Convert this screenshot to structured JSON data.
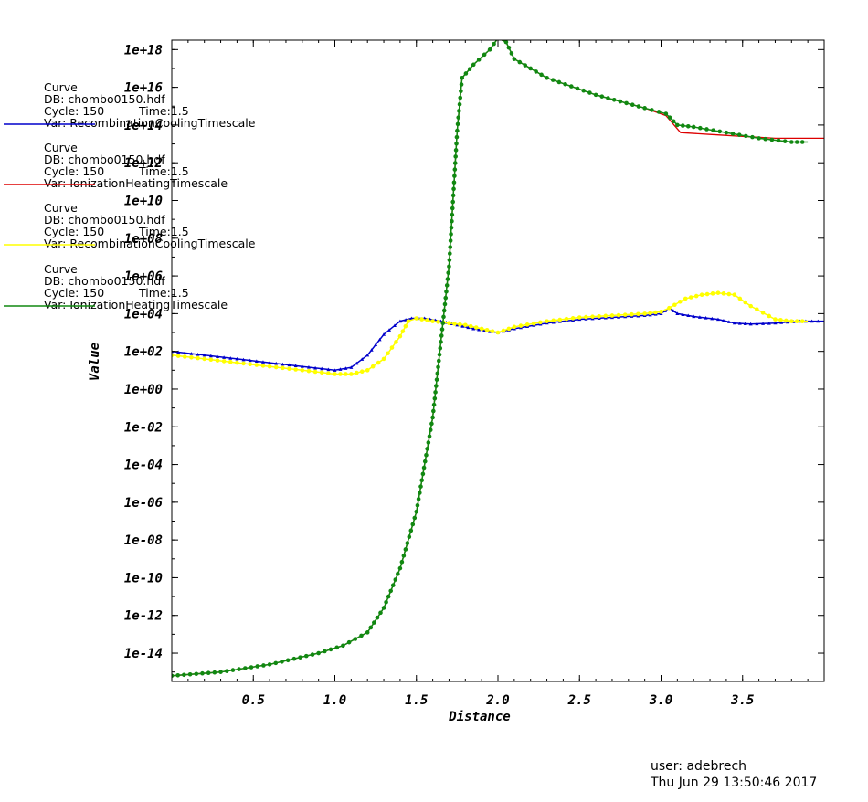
{
  "chart_data": {
    "type": "line",
    "xlabel": "Distance",
    "ylabel": "Value",
    "xlim": [
      0.0,
      4.0
    ],
    "ylog": true,
    "ylim_exp": [
      -15.5,
      18.5
    ],
    "xticks": [
      "0.5",
      "1.0",
      "1.5",
      "2.0",
      "2.5",
      "3.0",
      "3.5"
    ],
    "xtick_values": [
      0.5,
      1.0,
      1.5,
      2.0,
      2.5,
      3.0,
      3.5
    ],
    "yticks": [
      "1e+18",
      "1e+16",
      "1e+14",
      "1e+12",
      "1e+10",
      "1e+08",
      "1e+06",
      "1e+04",
      "1e+02",
      "1e+00",
      "1e-02",
      "1e-04",
      "1e-06",
      "1e-08",
      "1e-10",
      "1e-12",
      "1e-14"
    ],
    "ytick_exps": [
      18,
      16,
      14,
      12,
      10,
      8,
      6,
      4,
      2,
      0,
      -2,
      -4,
      -6,
      -8,
      -10,
      -12,
      -14
    ],
    "series": [
      {
        "name": "RecombinationCoolingTimescale",
        "color": "#0000cc",
        "marker": "triangle",
        "x": [
          0.0,
          0.2,
          0.4,
          0.6,
          0.8,
          1.0,
          1.1,
          1.2,
          1.3,
          1.4,
          1.47,
          1.55,
          1.65,
          1.75,
          1.85,
          1.95,
          2.0,
          2.1,
          2.3,
          2.5,
          2.7,
          2.9,
          3.0,
          3.05,
          3.1,
          3.2,
          3.35,
          3.45,
          3.55,
          3.7,
          3.85,
          4.0
        ],
        "y_log10": [
          2.0,
          1.8,
          1.6,
          1.4,
          1.2,
          1.0,
          1.15,
          1.8,
          2.9,
          3.6,
          3.75,
          3.75,
          3.6,
          3.4,
          3.2,
          3.05,
          3.0,
          3.2,
          3.5,
          3.7,
          3.8,
          3.9,
          4.0,
          4.3,
          4.0,
          3.85,
          3.7,
          3.5,
          3.45,
          3.5,
          3.6,
          3.6
        ]
      },
      {
        "name": "IonizationHeatingTimescale",
        "color": "#dd0000",
        "marker": "none",
        "x": [
          0.0,
          0.3,
          0.6,
          0.9,
          1.05,
          1.2,
          1.3,
          1.4,
          1.5,
          1.6,
          1.7,
          1.75,
          1.78,
          1.85,
          1.95,
          2.0,
          2.05,
          2.1,
          2.3,
          2.6,
          2.9,
          3.03,
          3.08,
          3.12,
          3.3,
          3.5,
          3.7,
          3.9,
          4.0
        ],
        "y_log10": [
          -15.2,
          -15.0,
          -14.6,
          -14.0,
          -13.6,
          -12.9,
          -11.6,
          -9.5,
          -6.5,
          -1.5,
          6.5,
          13.7,
          16.5,
          17.2,
          18.0,
          18.6,
          18.4,
          17.5,
          16.5,
          15.6,
          14.9,
          14.5,
          14.0,
          13.6,
          13.5,
          13.4,
          13.3,
          13.3,
          13.3
        ]
      },
      {
        "name": "RecombinationCoolingTimescale",
        "color": "#ffff00",
        "marker": "circle",
        "x": [
          0.0,
          0.2,
          0.4,
          0.6,
          0.8,
          1.0,
          1.1,
          1.2,
          1.3,
          1.4,
          1.45,
          1.5,
          1.6,
          1.7,
          1.8,
          1.9,
          2.0,
          2.1,
          2.3,
          2.5,
          2.7,
          2.9,
          3.0,
          3.05,
          3.15,
          3.25,
          3.35,
          3.45,
          3.55,
          3.7,
          3.8,
          3.9
        ],
        "y_log10": [
          1.8,
          1.6,
          1.4,
          1.2,
          1.0,
          0.8,
          0.8,
          1.0,
          1.6,
          2.8,
          3.6,
          3.75,
          3.6,
          3.5,
          3.4,
          3.2,
          3.0,
          3.3,
          3.6,
          3.8,
          3.9,
          4.0,
          4.1,
          4.3,
          4.8,
          5.0,
          5.1,
          5.0,
          4.4,
          3.7,
          3.6,
          3.6
        ]
      },
      {
        "name": "IonizationHeatingTimescale",
        "color": "#118811",
        "marker": "circle",
        "x": [
          0.0,
          0.3,
          0.6,
          0.9,
          1.05,
          1.2,
          1.3,
          1.4,
          1.5,
          1.6,
          1.7,
          1.75,
          1.78,
          1.85,
          1.95,
          2.0,
          2.05,
          2.1,
          2.3,
          2.6,
          2.9,
          3.03,
          3.1,
          3.2,
          3.4,
          3.6,
          3.8,
          3.9
        ],
        "y_log10": [
          -15.2,
          -15.0,
          -14.6,
          -14.0,
          -13.6,
          -12.9,
          -11.6,
          -9.5,
          -6.5,
          -1.5,
          6.5,
          13.7,
          16.5,
          17.2,
          18.0,
          18.6,
          18.4,
          17.5,
          16.5,
          15.6,
          14.9,
          14.6,
          14.0,
          13.9,
          13.6,
          13.3,
          13.1,
          13.1
        ]
      }
    ]
  },
  "legend": [
    {
      "type": "Curve",
      "db": "DB: chombo0150.hdf",
      "cycle": "Cycle: 150",
      "time": "Time:1.5",
      "var": "Var: RecombinationCoolingTimescale",
      "color": "#0000cc"
    },
    {
      "type": "Curve",
      "db": "DB: chombo0150.hdf",
      "cycle": "Cycle: 150",
      "time": "Time:1.5",
      "var": "Var: IonizationHeatingTimescale",
      "color": "#dd0000"
    },
    {
      "type": "Curve",
      "db": "DB: chombo0150.hdf",
      "cycle": "Cycle: 150",
      "time": "Time:1.5",
      "var": "Var: RecombinationCoolingTimescale",
      "color": "#ffff00"
    },
    {
      "type": "Curve",
      "db": "DB: chombo0150.hdf",
      "cycle": "Cycle: 150",
      "time": "Time:1.5",
      "var": "Var: IonizationHeatingTimescale",
      "color": "#118811"
    }
  ],
  "footer": {
    "user": "user: adebrech",
    "date": "Thu Jun 29 13:50:46 2017"
  }
}
